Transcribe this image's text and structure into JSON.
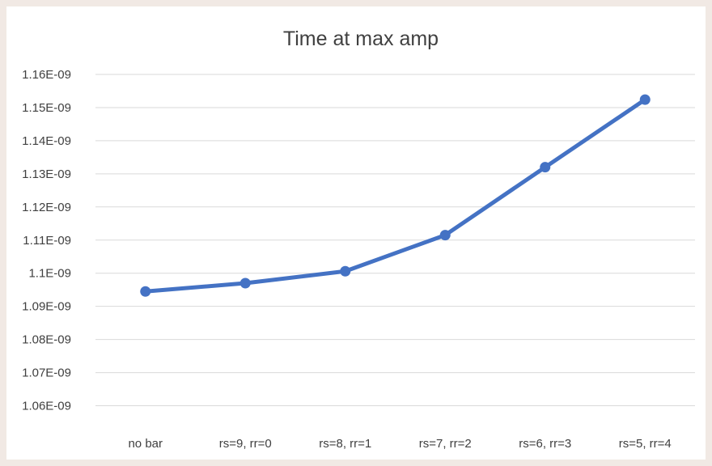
{
  "chart_data": {
    "type": "line",
    "title": "Time at max amp",
    "xlabel": "",
    "ylabel": "",
    "categories": [
      "no bar",
      "rs=9, rr=0",
      "rs=8, rr=1",
      "rs=7, rr=2",
      "rs=6, rr=3",
      "rs=5, rr=4"
    ],
    "series": [
      {
        "values": [
          1.0945e-09,
          1.097e-09,
          1.1006e-09,
          1.1115e-09,
          1.132e-09,
          1.1524e-09
        ],
        "color": "#4472c4"
      }
    ],
    "ylim": [
      1.055e-09,
      1.16e-09
    ],
    "ytick_values": [
      1.06e-09,
      1.07e-09,
      1.08e-09,
      1.09e-09,
      1.1e-09,
      1.11e-09,
      1.12e-09,
      1.13e-09,
      1.14e-09,
      1.15e-09,
      1.16e-09
    ],
    "ytick_labels": [
      "1.06E-09",
      "1.07E-09",
      "1.08E-09",
      "1.09E-09",
      "1.1E-09",
      "1.11E-09",
      "1.12E-09",
      "1.13E-09",
      "1.14E-09",
      "1.15E-09",
      "1.16E-09"
    ],
    "grid": true,
    "legend": "none",
    "colors": {
      "page_background": "#f1e9e4",
      "plot_background": "#ffffff",
      "gridline": "#d9d9d9",
      "text": "#404040"
    }
  }
}
